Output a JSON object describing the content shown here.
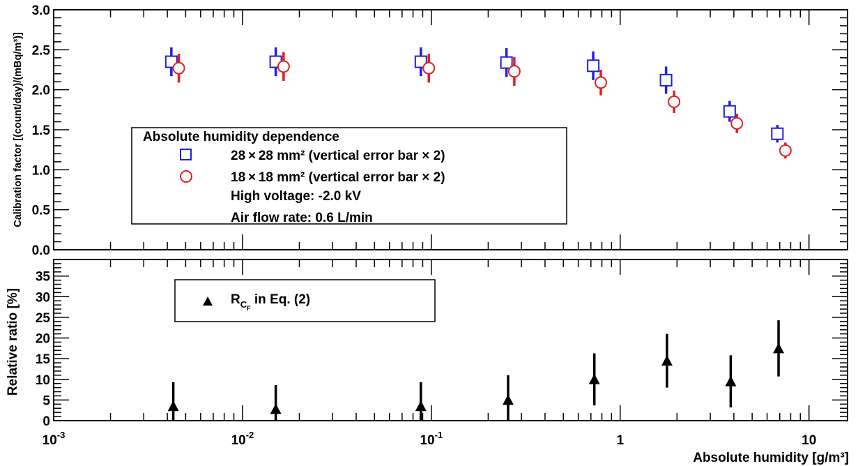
{
  "chart_data": [
    {
      "type": "scatter",
      "panel": "top",
      "ylabel": "Calibration factor [(count/day)/(mBq/m³)]",
      "xscale": "log",
      "xlim": [
        0.001,
        16
      ],
      "ylim": [
        0,
        3.0
      ],
      "yticks": [
        0.0,
        0.5,
        1.0,
        1.5,
        2.0,
        2.5,
        3.0
      ],
      "ytick_labels": [
        "0.0",
        "0.5",
        "1.0",
        "1.5",
        "2.0",
        "2.5",
        "3.0"
      ],
      "legend": {
        "placement": "center-left",
        "header": "Absolute humidity dependence",
        "lines": [
          "High voltage: -2.0 kV",
          "Air flow rate: 0.6 L/min"
        ]
      },
      "series": [
        {
          "name": "28 × 28 mm² (vertical error bar × 2)",
          "marker": "open-square",
          "color": "#1f1fdc",
          "x": [
            0.0042,
            0.015,
            0.088,
            0.25,
            0.72,
            1.75,
            3.8,
            6.8
          ],
          "y": [
            2.35,
            2.35,
            2.35,
            2.34,
            2.3,
            2.12,
            1.73,
            1.45
          ],
          "yerr": [
            0.18,
            0.18,
            0.18,
            0.18,
            0.18,
            0.17,
            0.13,
            0.11
          ]
        },
        {
          "name": "18 × 18 mm² (vertical error bar × 2)",
          "marker": "open-circle",
          "color": "#e02020",
          "x": [
            0.0046,
            0.0165,
            0.097,
            0.275,
            0.79,
            1.93,
            4.15,
            7.5
          ],
          "y": [
            2.27,
            2.29,
            2.27,
            2.23,
            2.09,
            1.85,
            1.58,
            1.24
          ],
          "yerr": [
            0.18,
            0.18,
            0.18,
            0.18,
            0.16,
            0.14,
            0.12,
            0.1
          ]
        }
      ]
    },
    {
      "type": "scatter",
      "panel": "bottom",
      "xlabel": "Absolute humidity [g/m³]",
      "ylabel": "Relative ratio [%]",
      "xscale": "log",
      "xlim": [
        0.001,
        16
      ],
      "ylim": [
        0,
        39
      ],
      "xticks": [
        0.001,
        0.01,
        0.1,
        1,
        10
      ],
      "xtick_labels": [
        "10^-3",
        "10^-2",
        "10^-1",
        "1",
        "10"
      ],
      "yticks": [
        0,
        5,
        10,
        15,
        20,
        25,
        30,
        35
      ],
      "ytick_labels": [
        "0",
        "5",
        "10",
        "15",
        "20",
        "25",
        "30",
        "35"
      ],
      "legend": {
        "placement": "top-left"
      },
      "series": [
        {
          "name": "R_CF in Eq. (2)",
          "marker": "filled-triangle",
          "color": "#000000",
          "x": [
            0.0043,
            0.015,
            0.088,
            0.255,
            0.73,
            1.77,
            3.85,
            6.9
          ],
          "y": [
            3.5,
            2.8,
            3.5,
            5.0,
            10.0,
            14.5,
            9.5,
            17.5
          ],
          "yerr": [
            5.8,
            5.8,
            5.8,
            6.0,
            6.3,
            6.5,
            6.3,
            6.8
          ]
        }
      ]
    }
  ],
  "legend_text": {
    "rcf_base": "R",
    "rcf_sub": "C",
    "rcf_subsub": "F",
    "rcf_rest": " in Eq. (2)"
  }
}
